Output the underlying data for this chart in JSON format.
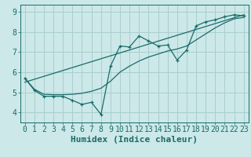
{
  "xlabel": "Humidex (Indice chaleur)",
  "background_color": "#cce8e8",
  "line_color": "#1a6b6b",
  "grid_color": "#aacece",
  "xlim": [
    -0.5,
    23.5
  ],
  "ylim": [
    3.5,
    9.35
  ],
  "yticks": [
    4,
    5,
    6,
    7,
    8,
    9
  ],
  "xticks": [
    0,
    1,
    2,
    3,
    4,
    5,
    6,
    7,
    8,
    9,
    10,
    11,
    12,
    13,
    14,
    15,
    16,
    17,
    18,
    19,
    20,
    21,
    22,
    23
  ],
  "jagged_x": [
    0,
    1,
    2,
    3,
    4,
    5,
    6,
    7,
    8,
    9,
    10,
    11,
    12,
    13,
    14,
    15,
    16,
    17,
    18,
    19,
    20,
    21,
    22,
    23
  ],
  "jagged_y": [
    5.7,
    5.1,
    4.8,
    4.8,
    4.8,
    4.6,
    4.4,
    4.5,
    3.9,
    6.3,
    7.3,
    7.25,
    7.8,
    7.55,
    7.3,
    7.35,
    6.6,
    7.1,
    8.3,
    8.5,
    8.6,
    8.75,
    8.85,
    8.8
  ],
  "trend_x": [
    0,
    23
  ],
  "trend_y": [
    5.5,
    8.85
  ],
  "smooth_x": [
    0,
    1,
    2,
    3,
    4,
    5,
    6,
    7,
    8,
    9,
    10,
    11,
    12,
    13,
    14,
    15,
    16,
    17,
    18,
    19,
    20,
    21,
    22,
    23
  ],
  "smooth_y": [
    5.7,
    5.15,
    4.9,
    4.88,
    4.88,
    4.9,
    4.95,
    5.05,
    5.2,
    5.55,
    6.0,
    6.3,
    6.55,
    6.75,
    6.9,
    7.05,
    7.15,
    7.3,
    7.6,
    7.9,
    8.2,
    8.45,
    8.65,
    8.72
  ],
  "font_family": "monospace",
  "xlabel_fontsize": 8,
  "tick_fontsize": 7
}
